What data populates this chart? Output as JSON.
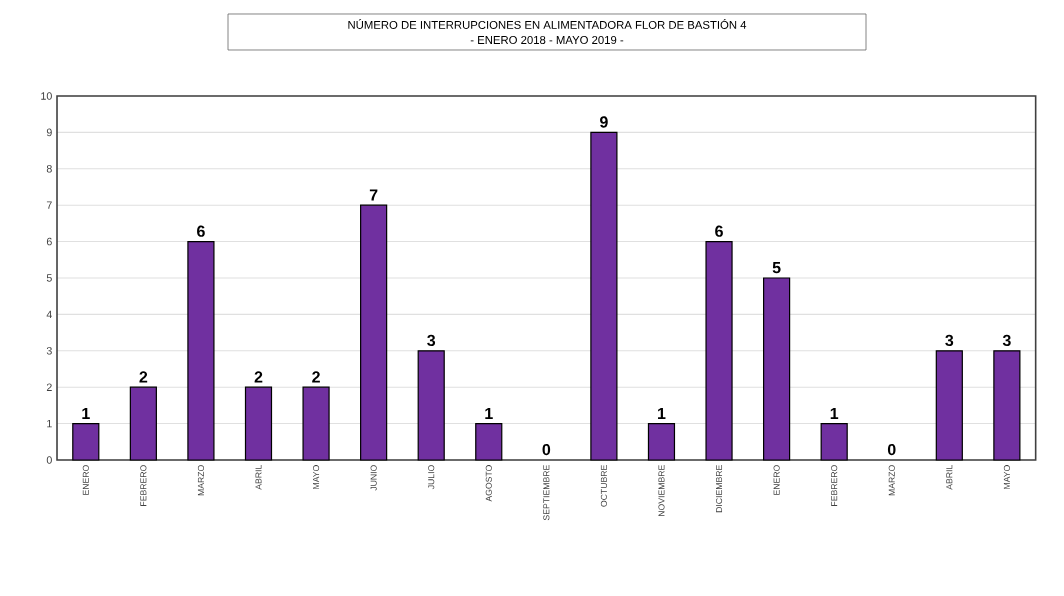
{
  "chart_data": {
    "type": "bar",
    "title": "NÚMERO DE INTERRUPCIONES EN ALIMENTADORA FLOR DE BASTIÓN 4",
    "subtitle": "- ENERO 2018 - MAYO 2019 -",
    "categories": [
      "ENERO",
      "FEBRERO",
      "MARZO",
      "ABRIL",
      "MAYO",
      "JUNIO",
      "JULIO",
      "AGOSTO",
      "SEPTIEMBRE",
      "OCTUBRE",
      "NOVIEMBRE",
      "DICIEMBRE",
      "ENERO",
      "FEBRERO",
      "MARZO",
      "ABRIL",
      "MAYO"
    ],
    "values": [
      1,
      2,
      6,
      2,
      2,
      7,
      3,
      1,
      0,
      9,
      1,
      6,
      5,
      1,
      0,
      3,
      3
    ],
    "color": "#7030a0",
    "ylim": [
      0,
      10
    ],
    "yticks": [
      0,
      1,
      2,
      3,
      4,
      5,
      6,
      7,
      8,
      9,
      10
    ],
    "grid": "y",
    "data_labels": true
  }
}
